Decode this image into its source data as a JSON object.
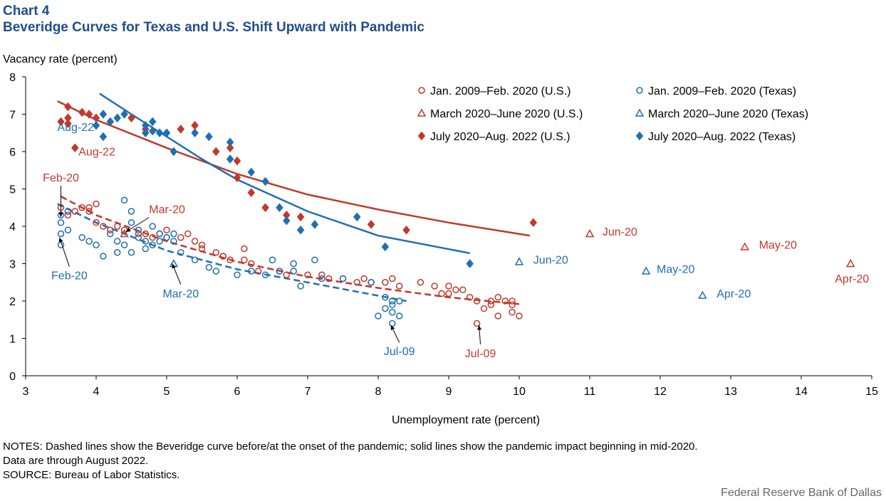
{
  "header": {
    "chart_number": "Chart 4",
    "title": "Beveridge Curves for Texas and U.S. Shift Upward with Pandemic"
  },
  "notes": [
    "NOTES: Dashed lines show the Beveridge curve before/at the onset of the pandemic; solid lines show the pandemic impact beginning in mid-2020.",
    "Data are through August 2022.",
    "SOURCE: Bureau of Labor Statistics."
  ],
  "credit": "Federal Reserve Bank of Dallas",
  "colors": {
    "us": "#c0392b",
    "texas": "#1f6fb2",
    "title": "#1f4e8c"
  },
  "chart_data": {
    "type": "scatter",
    "xlabel": "Unemployment  rate (percent)",
    "ylabel": "Vacancy rate (percent)",
    "xlim": [
      3,
      15
    ],
    "ylim": [
      0,
      8
    ],
    "xticks": [
      3,
      4,
      5,
      6,
      7,
      8,
      9,
      10,
      11,
      12,
      13,
      14,
      15
    ],
    "yticks": [
      0,
      1,
      2,
      3,
      4,
      5,
      6,
      7,
      8
    ],
    "grid": false,
    "legend_position": "top-right",
    "series": [
      {
        "name": "Jan. 2009–Feb. 2020 (U.S.)",
        "region": "us",
        "marker": "circle",
        "legend_slot": 0,
        "points": [
          [
            9.4,
            1.4
          ],
          [
            9.5,
            1.8
          ],
          [
            9.6,
            1.9
          ],
          [
            9.8,
            2.0
          ],
          [
            9.9,
            1.7
          ],
          [
            10.0,
            1.6
          ],
          [
            9.9,
            2.0
          ],
          [
            9.7,
            2.1
          ],
          [
            9.6,
            2.0
          ],
          [
            9.4,
            2.0
          ],
          [
            9.3,
            2.1
          ],
          [
            9.1,
            2.3
          ],
          [
            9.0,
            2.2
          ],
          [
            9.0,
            2.4
          ],
          [
            8.9,
            2.2
          ],
          [
            8.8,
            2.4
          ],
          [
            8.6,
            2.5
          ],
          [
            8.3,
            2.4
          ],
          [
            8.2,
            2.6
          ],
          [
            8.1,
            2.5
          ],
          [
            7.9,
            2.5
          ],
          [
            7.8,
            2.6
          ],
          [
            7.7,
            2.5
          ],
          [
            7.5,
            2.6
          ],
          [
            7.3,
            2.6
          ],
          [
            7.2,
            2.7
          ],
          [
            7.0,
            2.7
          ],
          [
            6.7,
            2.7
          ],
          [
            6.6,
            2.8
          ],
          [
            6.3,
            2.8
          ],
          [
            6.2,
            3.0
          ],
          [
            6.1,
            3.1
          ],
          [
            5.9,
            3.1
          ],
          [
            5.8,
            3.2
          ],
          [
            5.7,
            3.3
          ],
          [
            5.5,
            3.4
          ],
          [
            5.4,
            3.6
          ],
          [
            5.2,
            3.7
          ],
          [
            5.0,
            3.7
          ],
          [
            4.9,
            3.8
          ],
          [
            4.7,
            3.8
          ],
          [
            4.6,
            3.8
          ],
          [
            4.4,
            3.9
          ],
          [
            4.3,
            4.0
          ],
          [
            4.2,
            3.9
          ],
          [
            4.1,
            4.0
          ],
          [
            4.0,
            4.1
          ],
          [
            3.9,
            4.4
          ],
          [
            3.8,
            4.5
          ],
          [
            3.7,
            4.4
          ],
          [
            3.6,
            4.4
          ],
          [
            3.5,
            4.5
          ],
          [
            3.6,
            4.3
          ],
          [
            3.9,
            4.5
          ],
          [
            4.0,
            4.6
          ],
          [
            5.5,
            3.5
          ],
          [
            6.1,
            3.4
          ],
          [
            5.8,
            3.2
          ],
          [
            5.0,
            3.9
          ],
          [
            5.3,
            3.8
          ],
          [
            4.8,
            3.7
          ],
          [
            9.7,
            1.6
          ],
          [
            9.9,
            1.9
          ],
          [
            9.2,
            2.3
          ]
        ]
      },
      {
        "name": "Jan. 2009–Feb. 2020 (Texas)",
        "region": "texas",
        "marker": "circle",
        "legend_slot": 1,
        "points": [
          [
            8.2,
            1.4
          ],
          [
            8.3,
            1.6
          ],
          [
            8.2,
            1.7
          ],
          [
            8.1,
            1.8
          ],
          [
            8.0,
            1.6
          ],
          [
            8.2,
            2.0
          ],
          [
            8.2,
            1.9
          ],
          [
            8.3,
            2.0
          ],
          [
            8.1,
            2.1
          ],
          [
            7.9,
            2.5
          ],
          [
            7.5,
            2.6
          ],
          [
            7.2,
            2.6
          ],
          [
            6.9,
            2.4
          ],
          [
            6.8,
            2.8
          ],
          [
            6.6,
            2.8
          ],
          [
            6.4,
            2.7
          ],
          [
            6.2,
            2.8
          ],
          [
            6.0,
            2.7
          ],
          [
            5.7,
            2.8
          ],
          [
            5.6,
            2.9
          ],
          [
            5.4,
            3.1
          ],
          [
            5.2,
            3.3
          ],
          [
            5.1,
            3.6
          ],
          [
            5.0,
            3.7
          ],
          [
            4.9,
            3.6
          ],
          [
            4.8,
            3.5
          ],
          [
            4.7,
            3.6
          ],
          [
            4.6,
            3.7
          ],
          [
            4.5,
            3.3
          ],
          [
            4.4,
            3.5
          ],
          [
            4.3,
            3.6
          ],
          [
            4.2,
            3.8
          ],
          [
            4.1,
            3.2
          ],
          [
            4.0,
            3.5
          ],
          [
            3.9,
            3.6
          ],
          [
            3.8,
            3.7
          ],
          [
            3.6,
            3.9
          ],
          [
            3.5,
            3.8
          ],
          [
            3.5,
            3.5
          ],
          [
            3.5,
            4.3
          ],
          [
            3.6,
            4.4
          ],
          [
            3.5,
            4.1
          ],
          [
            4.4,
            4.7
          ],
          [
            4.5,
            4.4
          ],
          [
            4.5,
            4.1
          ],
          [
            4.8,
            4.0
          ],
          [
            5.1,
            3.8
          ],
          [
            7.1,
            3.1
          ],
          [
            6.8,
            3.0
          ],
          [
            6.5,
            3.1
          ],
          [
            4.6,
            3.9
          ],
          [
            4.9,
            3.8
          ],
          [
            4.3,
            3.3
          ],
          [
            4.7,
            3.4
          ]
        ]
      },
      {
        "name": "March 2020–June 2020 (U.S.)",
        "region": "us",
        "marker": "triangle",
        "legend_slot": 2,
        "points": [
          [
            4.4,
            3.8
          ],
          [
            14.7,
            3.0
          ],
          [
            13.2,
            3.45
          ],
          [
            11.0,
            3.8
          ]
        ]
      },
      {
        "name": "March 2020–June 2020 (Texas)",
        "region": "texas",
        "marker": "triangle",
        "legend_slot": 3,
        "points": [
          [
            5.1,
            3.0
          ],
          [
            12.6,
            2.15
          ],
          [
            11.8,
            2.8
          ],
          [
            10.0,
            3.05
          ]
        ]
      },
      {
        "name": "July 2020–Aug. 2022 (U.S.)",
        "region": "us",
        "marker": "diamond",
        "legend_slot": 4,
        "points": [
          [
            10.2,
            4.1
          ],
          [
            8.4,
            3.9
          ],
          [
            7.9,
            4.05
          ],
          [
            6.9,
            4.25
          ],
          [
            6.7,
            4.3
          ],
          [
            6.4,
            4.5
          ],
          [
            6.2,
            4.9
          ],
          [
            6.0,
            5.3
          ],
          [
            6.0,
            5.75
          ],
          [
            5.9,
            6.1
          ],
          [
            5.7,
            6.0
          ],
          [
            5.4,
            6.7
          ],
          [
            5.2,
            6.6
          ],
          [
            4.7,
            6.6
          ],
          [
            4.5,
            6.9
          ],
          [
            4.2,
            6.8
          ],
          [
            3.9,
            7.0
          ],
          [
            3.8,
            7.05
          ],
          [
            3.6,
            6.9
          ],
          [
            3.6,
            7.2
          ],
          [
            3.5,
            6.8
          ],
          [
            3.7,
            6.1
          ],
          [
            4.0,
            6.9
          ],
          [
            3.6,
            6.75
          ]
        ]
      },
      {
        "name": "July 2020–Aug. 2022 (Texas)",
        "region": "texas",
        "marker": "diamond",
        "legend_slot": 5,
        "points": [
          [
            9.3,
            3.0
          ],
          [
            8.1,
            3.45
          ],
          [
            7.7,
            4.25
          ],
          [
            7.1,
            4.05
          ],
          [
            6.9,
            3.9
          ],
          [
            6.7,
            4.15
          ],
          [
            6.6,
            4.5
          ],
          [
            6.4,
            5.2
          ],
          [
            6.2,
            5.45
          ],
          [
            5.9,
            5.8
          ],
          [
            5.9,
            6.25
          ],
          [
            5.6,
            6.4
          ],
          [
            5.4,
            6.5
          ],
          [
            5.1,
            6.0
          ],
          [
            5.0,
            6.5
          ],
          [
            4.8,
            6.8
          ],
          [
            4.8,
            6.55
          ],
          [
            4.7,
            6.5
          ],
          [
            4.4,
            7.0
          ],
          [
            4.3,
            6.9
          ],
          [
            4.2,
            6.8
          ],
          [
            4.1,
            7.0
          ],
          [
            4.1,
            6.4
          ],
          [
            4.9,
            6.5
          ],
          [
            4.7,
            6.7
          ],
          [
            4.0,
            6.7
          ]
        ]
      }
    ],
    "fit_lines": [
      {
        "region": "us",
        "style": "solid",
        "points": [
          [
            3.45,
            7.35
          ],
          [
            4.0,
            6.85
          ],
          [
            5.0,
            6.1
          ],
          [
            6.0,
            5.4
          ],
          [
            7.0,
            4.85
          ],
          [
            8.0,
            4.45
          ],
          [
            9.0,
            4.1
          ],
          [
            10.15,
            3.75
          ]
        ]
      },
      {
        "region": "texas",
        "style": "solid",
        "points": [
          [
            4.05,
            7.55
          ],
          [
            4.5,
            7.0
          ],
          [
            5.0,
            6.4
          ],
          [
            5.5,
            5.8
          ],
          [
            6.0,
            5.25
          ],
          [
            7.0,
            4.4
          ],
          [
            8.0,
            3.75
          ],
          [
            9.3,
            3.28
          ]
        ]
      },
      {
        "region": "us",
        "style": "dashed",
        "points": [
          [
            3.5,
            4.8
          ],
          [
            4.0,
            4.3
          ],
          [
            5.0,
            3.6
          ],
          [
            6.0,
            3.05
          ],
          [
            7.0,
            2.65
          ],
          [
            8.0,
            2.35
          ],
          [
            9.0,
            2.1
          ],
          [
            10.0,
            1.92
          ]
        ]
      },
      {
        "region": "texas",
        "style": "dashed",
        "points": [
          [
            3.45,
            4.6
          ],
          [
            4.0,
            4.1
          ],
          [
            5.0,
            3.35
          ],
          [
            6.0,
            2.85
          ],
          [
            7.0,
            2.5
          ],
          [
            8.4,
            2.0
          ]
        ]
      }
    ],
    "annotations": [
      {
        "text": "Aug-22",
        "region": "texas",
        "anchor": "end",
        "x": 3.97,
        "y": 6.55
      },
      {
        "text": "Aug-22",
        "region": "us",
        "anchor": "start",
        "x": 3.75,
        "y": 5.9
      },
      {
        "text": "Feb-20",
        "region": "us",
        "anchor": "middle",
        "x": 3.5,
        "y": 5.2,
        "arrow_to": [
          3.5,
          4.25
        ]
      },
      {
        "text": "Feb-20",
        "region": "texas",
        "anchor": "middle",
        "x": 3.62,
        "y": 2.58,
        "arrow_to": [
          3.48,
          3.7
        ]
      },
      {
        "text": "Mar-20",
        "region": "us",
        "anchor": "start",
        "x": 4.75,
        "y": 4.35,
        "arrow_to": [
          4.42,
          3.85
        ]
      },
      {
        "text": "Mar-20",
        "region": "texas",
        "anchor": "middle",
        "x": 5.2,
        "y": 2.1,
        "arrow_to": [
          5.08,
          3.0
        ]
      },
      {
        "text": "Jun-20",
        "region": "us",
        "anchor": "start",
        "x": 11.18,
        "y": 3.75
      },
      {
        "text": "Jun-20",
        "region": "texas",
        "anchor": "start",
        "x": 10.2,
        "y": 3.0
      },
      {
        "text": "May-20",
        "region": "us",
        "anchor": "start",
        "x": 13.4,
        "y": 3.4
      },
      {
        "text": "May-20",
        "region": "texas",
        "anchor": "start",
        "x": 11.95,
        "y": 2.75
      },
      {
        "text": "Apr-20",
        "region": "us",
        "anchor": "middle",
        "x": 14.72,
        "y": 2.5
      },
      {
        "text": "Apr-20",
        "region": "texas",
        "anchor": "start",
        "x": 12.8,
        "y": 2.1
      },
      {
        "text": "Jul-09",
        "region": "texas",
        "anchor": "middle",
        "x": 8.3,
        "y": 0.55,
        "arrow_to": [
          8.18,
          1.35
        ]
      },
      {
        "text": "Jul-09",
        "region": "us",
        "anchor": "middle",
        "x": 9.45,
        "y": 0.5,
        "arrow_to": [
          9.43,
          1.35
        ]
      }
    ]
  }
}
